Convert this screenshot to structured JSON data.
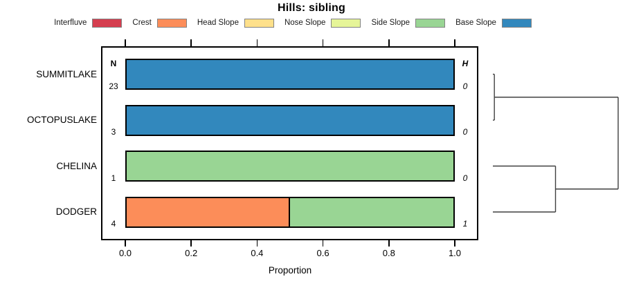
{
  "title": "Hills: sibling",
  "chart_data": {
    "type": "bar",
    "orientation": "horizontal-stacked",
    "title": "Hills: sibling",
    "xlabel": "Proportion",
    "xlim": [
      0,
      1
    ],
    "xticks": [
      "0.0",
      "0.2",
      "0.4",
      "0.6",
      "0.8",
      "1.0"
    ],
    "grid": false,
    "legend_position": "top",
    "legend": {
      "items": [
        {
          "label": "Interfluve",
          "color": "#D53E4F"
        },
        {
          "label": "Crest",
          "color": "#FC8D59"
        },
        {
          "label": "Head Slope",
          "color": "#FEE08B"
        },
        {
          "label": "Nose Slope",
          "color": "#E6F598"
        },
        {
          "label": "Side Slope",
          "color": "#99D594"
        },
        {
          "label": "Base Slope",
          "color": "#3288BD"
        }
      ]
    },
    "n_header": "N",
    "h_header": "H",
    "categories": [
      "SUMMITLAKE",
      "OCTOPUSLAKE",
      "CHELINA",
      "DODGER"
    ],
    "rows": [
      {
        "label": "SUMMITLAKE",
        "n": "23",
        "h": "0",
        "segments": [
          {
            "name": "Base Slope",
            "value": 1.0,
            "color": "#3288BD"
          }
        ]
      },
      {
        "label": "OCTOPUSLAKE",
        "n": "3",
        "h": "0",
        "segments": [
          {
            "name": "Base Slope",
            "value": 1.0,
            "color": "#3288BD"
          }
        ]
      },
      {
        "label": "CHELINA",
        "n": "1",
        "h": "0",
        "segments": [
          {
            "name": "Side Slope",
            "value": 1.0,
            "color": "#99D594"
          }
        ]
      },
      {
        "label": "DODGER",
        "n": "4",
        "h": "1",
        "segments": [
          {
            "name": "Crest",
            "value": 0.5,
            "color": "#FC8D59"
          },
          {
            "name": "Side Slope",
            "value": 0.5,
            "color": "#99D594"
          }
        ]
      }
    ],
    "dendrogram": {
      "orientation": "leaves-left-root-right",
      "leaf_order": [
        "SUMMITLAKE",
        "OCTOPUSLAKE",
        "CHELINA",
        "DODGER"
      ],
      "merges": [
        {
          "id": "M0",
          "children": [
            "L0",
            "L1"
          ],
          "height": 0.012
        },
        {
          "id": "M1",
          "children": [
            "L2",
            "L3"
          ],
          "height": 0.5
        },
        {
          "id": "M2",
          "children": [
            "M0",
            "M1"
          ],
          "height": 1.0
        }
      ],
      "line_color": "#3f3f3f"
    }
  }
}
